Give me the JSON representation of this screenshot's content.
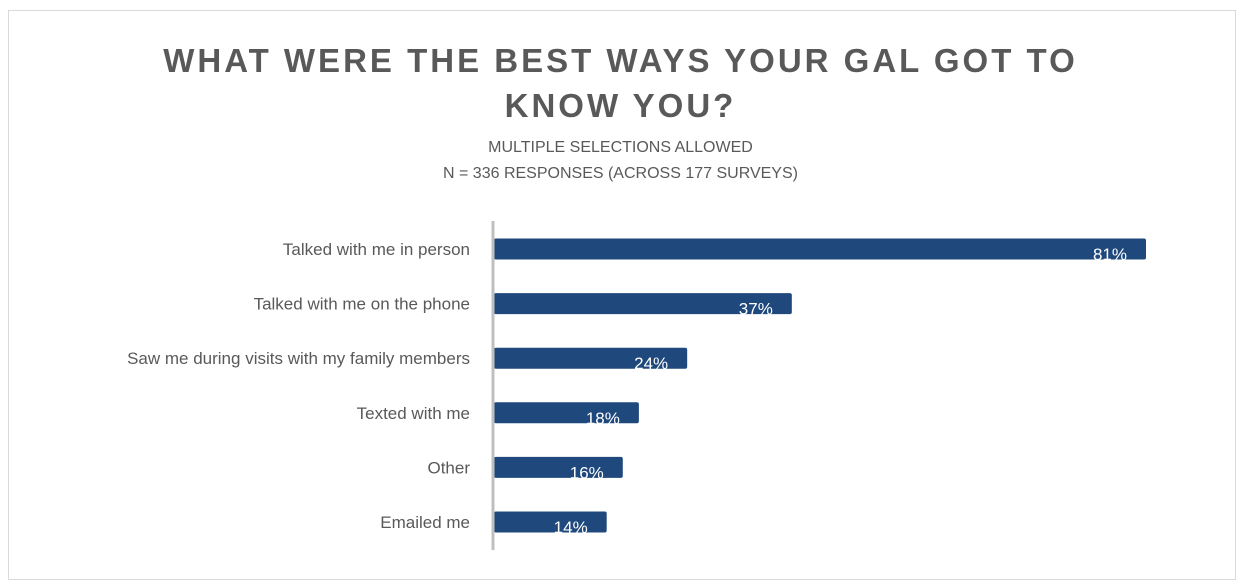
{
  "chart_title": {
    "line1": "WHAT WERE THE BEST WAYS YOUR GAL GOT TO",
    "line2": "KNOW YOU?"
  },
  "chart_subtitle": {
    "line1": "MULTIPLE SELECTIONS  ALLOWED",
    "line2": "N = 336 RESPONSES (ACROSS  177 SURVEYS)"
  },
  "colors": {
    "bar": "#1F497D",
    "axis": "#bfbfbf",
    "text": "#595959",
    "value_label": "#ffffff"
  },
  "chart_data": {
    "type": "bar",
    "orientation": "horizontal",
    "title": "WHAT WERE THE BEST WAYS YOUR GAL GOT TO KNOW YOU?",
    "subtitle": "MULTIPLE SELECTIONS  ALLOWED / N = 336 RESPONSES (ACROSS  177 SURVEYS)",
    "categories": [
      "Talked with me in person",
      "Talked with me on the phone",
      "Saw me during visits with my family members",
      "Texted with me",
      "Other",
      "Emailed me"
    ],
    "values": [
      81,
      37,
      24,
      18,
      16,
      14
    ],
    "value_labels": [
      "81%",
      "37%",
      "24%",
      "18%",
      "16%",
      "14%"
    ],
    "xlim": [
      0,
      81
    ],
    "xlabel": "",
    "ylabel": "",
    "grid": false,
    "legend": "none"
  }
}
